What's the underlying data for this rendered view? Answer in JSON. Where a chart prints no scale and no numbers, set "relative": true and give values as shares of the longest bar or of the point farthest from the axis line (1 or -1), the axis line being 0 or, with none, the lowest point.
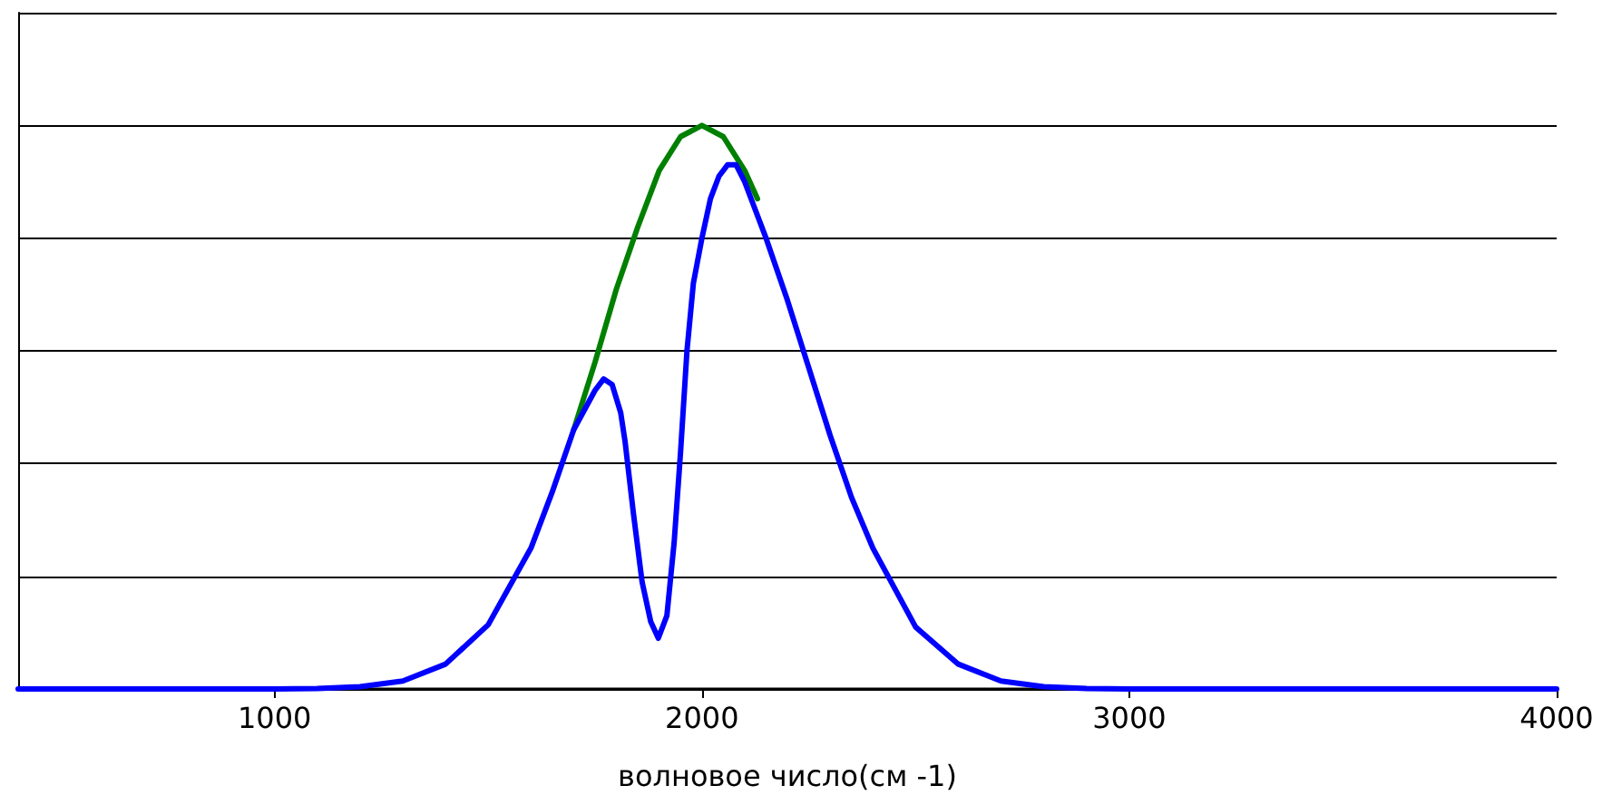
{
  "chart_data": {
    "type": "line",
    "xlabel": "волновое число(см -1)",
    "relative": true,
    "grid": "y",
    "marker": "none",
    "line_style": "solid",
    "xlim": [
      400,
      4000
    ],
    "xticks": [
      1000,
      2000,
      3000,
      4000
    ],
    "series": [
      {
        "color": "#008000",
        "x": [
          1700,
          1750,
          1800,
          1850,
          1900,
          1950,
          2000,
          2050,
          2100,
          2130
        ],
        "values": [
          0.46,
          0.58,
          0.71,
          0.82,
          0.92,
          0.98,
          1,
          0.98,
          0.92,
          0.87
        ]
      },
      {
        "color": "#0000ff",
        "x": [
          400,
          1000,
          1100,
          1200,
          1300,
          1400,
          1500,
          1600,
          1650,
          1700,
          1750,
          1770,
          1790,
          1810,
          1820,
          1840,
          1860,
          1880,
          1898,
          1918,
          1935,
          1950,
          1965,
          1980,
          2000,
          2020,
          2040,
          2060,
          2080,
          2100,
          2150,
          2200,
          2250,
          2300,
          2350,
          2400,
          2500,
          2600,
          2700,
          2800,
          2900,
          3000,
          4000
        ],
        "values": [
          0,
          0,
          0.001,
          0.004,
          0.014,
          0.044,
          0.114,
          0.25,
          0.35,
          0.46,
          0.53,
          0.55,
          0.54,
          0.49,
          0.44,
          0.31,
          0.19,
          0.12,
          0.09,
          0.13,
          0.26,
          0.42,
          0.6,
          0.72,
          0.8,
          0.87,
          0.91,
          0.93,
          0.93,
          0.9,
          0.8,
          0.69,
          0.57,
          0.45,
          0.34,
          0.25,
          0.11,
          0.044,
          0.014,
          0.004,
          0.001,
          0,
          0
        ]
      }
    ]
  }
}
